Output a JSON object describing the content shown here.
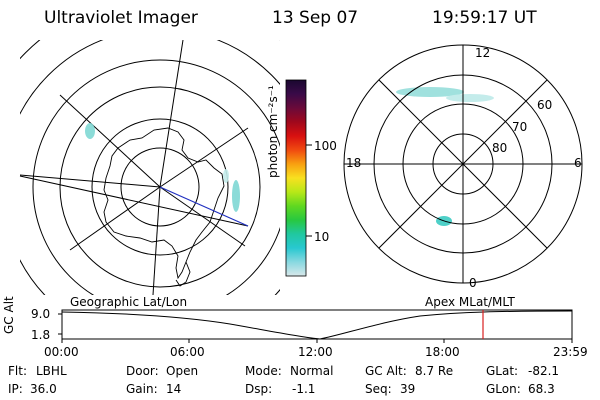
{
  "header": {
    "instrument": "Ultraviolet Imager",
    "date": "13 Sep 07",
    "time": "19:59:17 UT"
  },
  "left_map": {
    "caption": "Geographic Lat/Lon"
  },
  "right_map": {
    "caption": "Apex MLat/MLT",
    "mlt_labels": [
      "12",
      "18",
      "6",
      "0"
    ],
    "lat_labels": [
      "60",
      "70",
      "80"
    ]
  },
  "colorbar": {
    "unit_label": "photon cm⁻²s⁻¹",
    "ticks": [
      "100",
      "10"
    ],
    "colors": [
      "#1a0830",
      "#3a0a48",
      "#6a0a3a",
      "#a0081c",
      "#d81010",
      "#f04a10",
      "#f8a010",
      "#f8e020",
      "#b8e818",
      "#60d820",
      "#28c840",
      "#20c8a0",
      "#28c8d0",
      "#88d8e0",
      "#d8e8ea"
    ]
  },
  "altitude_panel": {
    "ylabel": "GC Alt",
    "y_ticks": [
      "9.0",
      "1.8"
    ],
    "x_ticks": [
      "00:00",
      "06:00",
      "12:00",
      "18:00",
      "23:59"
    ],
    "marker_color": "#d82020"
  },
  "status": {
    "flt_label": "Flt:",
    "flt_value": "LBHL",
    "door_label": "Door:",
    "door_value": "Open",
    "mode_label": "Mode:",
    "mode_value": "Normal",
    "gcalt_label": "GC Alt:",
    "gcalt_value": "8.7 Re",
    "glat_label": "GLat:",
    "glat_value": "-82.1",
    "ip_label": "IP:",
    "ip_value": "36.0",
    "gain_label": "Gain:",
    "gain_value": "14",
    "dsp_label": "Dsp:",
    "dsp_value": "-1.1",
    "seq_label": "Seq:",
    "seq_value": "39",
    "glon_label": "GLon:",
    "glon_value": "68.3"
  }
}
